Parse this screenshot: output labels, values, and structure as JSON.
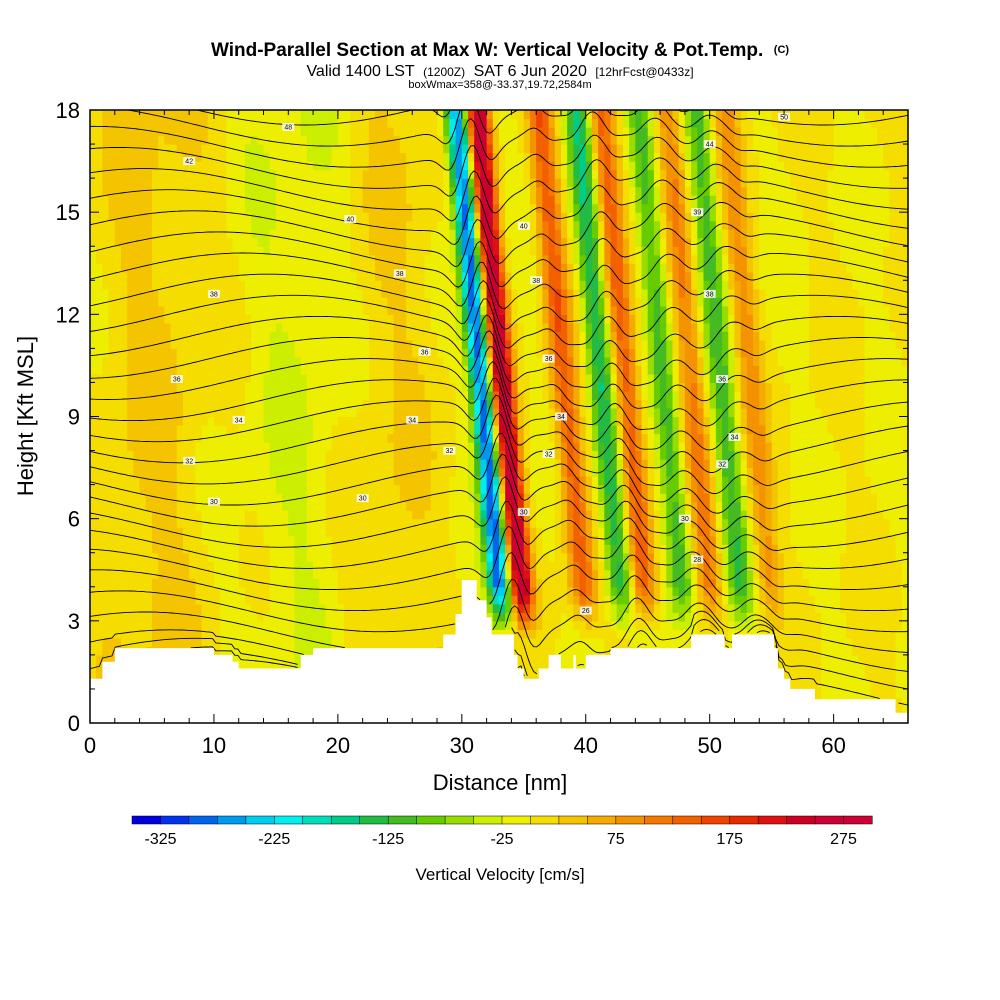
{
  "chart_data": {
    "type": "heatmap",
    "title": {
      "main": "Wind-Parallel Section at Max W: Vertical Velocity & Pot.Temp.",
      "main_suffix": "(C)",
      "line2_a": "Valid 1400 LST",
      "line2_b": "(1200Z)",
      "line2_c": "SAT 6 Jun 2020",
      "line2_d": "[12hrFcst@0433z]",
      "line3": "boxWmax=358@-33.37,19.72,2584m"
    },
    "xlabel": "Distance [nm]",
    "ylabel": "Height [Kft MSL]",
    "xlim": [
      0,
      66
    ],
    "ylim": [
      0,
      18
    ],
    "x_ticks": [
      0,
      10,
      20,
      30,
      40,
      50,
      60
    ],
    "y_ticks": [
      0,
      3,
      6,
      9,
      12,
      15,
      18
    ],
    "colorbar": {
      "title": "Vertical Velocity [cm/s]",
      "min": -350,
      "max": 300,
      "step": 25,
      "labels": [
        "-325",
        "-225",
        "-125",
        "-25",
        "75",
        "175",
        "275"
      ],
      "label_values": [
        -325,
        -225,
        -125,
        -25,
        75,
        175,
        275
      ],
      "colors": [
        "#0000dd",
        "#0033ee",
        "#0066ee",
        "#0099ee",
        "#00ccee",
        "#00eeee",
        "#00ddbb",
        "#00cc88",
        "#22bb44",
        "#44bb22",
        "#66cc00",
        "#99dd00",
        "#ccee00",
        "#eeee00",
        "#f5dd00",
        "#f5c400",
        "#f5aa00",
        "#f59200",
        "#f57800",
        "#f26000",
        "#ee4400",
        "#e82a00",
        "#dd1111",
        "#cc0022",
        "#cc0033",
        "#cc0033"
      ]
    },
    "velocity_features": [
      {
        "name": "updraft",
        "x": 33.5,
        "amplitude": 300
      },
      {
        "name": "downdraft",
        "x": 31.8,
        "amplitude": -300
      },
      {
        "name": "wave",
        "x": 38.5,
        "amplitude": 140
      },
      {
        "name": "wave",
        "x": 41.5,
        "amplitude": -150
      },
      {
        "name": "wave",
        "x": 43.5,
        "amplitude": 150
      },
      {
        "name": "wave",
        "x": 46.5,
        "amplitude": -120
      },
      {
        "name": "wave",
        "x": 48.8,
        "amplitude": 110
      },
      {
        "name": "wave",
        "x": 51.2,
        "amplitude": -110
      },
      {
        "name": "wave",
        "x": 53.6,
        "amplitude": 80
      },
      {
        "name": "background",
        "x": 5,
        "amplitude": 30
      },
      {
        "name": "background",
        "x": 17,
        "amplitude": -25
      },
      {
        "name": "background",
        "x": 24,
        "amplitude": 25
      }
    ],
    "terrain_kft": [
      [
        0,
        1.3
      ],
      [
        1,
        1.8
      ],
      [
        2,
        2.2
      ],
      [
        9.5,
        2.2
      ],
      [
        10,
        2.0
      ],
      [
        11.5,
        1.8
      ],
      [
        12,
        1.6
      ],
      [
        16.5,
        1.6
      ],
      [
        17,
        2.0
      ],
      [
        18,
        2.2
      ],
      [
        28,
        2.2
      ],
      [
        28.5,
        2.6
      ],
      [
        29.5,
        3.2
      ],
      [
        30,
        4.2
      ],
      [
        31,
        4.2
      ],
      [
        31.2,
        3.6
      ],
      [
        31.6,
        3.6
      ],
      [
        32,
        3.1
      ],
      [
        32.4,
        2.6
      ],
      [
        34,
        2.6
      ],
      [
        34.2,
        2.0
      ],
      [
        34.5,
        1.6
      ],
      [
        35,
        1.3
      ],
      [
        36,
        1.3
      ],
      [
        36.2,
        1.6
      ],
      [
        37,
        2.0
      ],
      [
        38,
        1.6
      ],
      [
        39,
        2.0
      ],
      [
        39.2,
        1.6
      ],
      [
        39.8,
        1.6
      ],
      [
        40,
        2.0
      ],
      [
        42,
        2.2
      ],
      [
        48,
        2.2
      ],
      [
        48.5,
        2.6
      ],
      [
        51,
        2.6
      ],
      [
        51.2,
        2.2
      ],
      [
        51.8,
        2.6
      ],
      [
        55,
        2.6
      ],
      [
        55.2,
        2.2
      ],
      [
        55.5,
        1.6
      ],
      [
        56,
        1.3
      ],
      [
        56.5,
        1.0
      ],
      [
        58,
        1.0
      ],
      [
        58.5,
        0.7
      ],
      [
        64.5,
        0.7
      ],
      [
        65,
        0.3
      ],
      [
        66,
        0.3
      ]
    ],
    "theta_contours": [
      {
        "value": "50",
        "label_at": [
          56,
          17.8
        ]
      },
      {
        "value": "48",
        "label_at": [
          16,
          17.5
        ]
      },
      {
        "value": "44",
        "label_at": [
          50,
          17
        ]
      },
      {
        "value": "42",
        "label_at": [
          8,
          16.5
        ]
      },
      {
        "value": "40",
        "label_at": [
          21,
          14.8
        ]
      },
      {
        "value": "40",
        "label_at": [
          35,
          14.6
        ]
      },
      {
        "value": "39",
        "label_at": [
          49,
          15
        ]
      },
      {
        "value": "38",
        "label_at": [
          25,
          13.2
        ]
      },
      {
        "value": "38",
        "label_at": [
          36,
          13
        ]
      },
      {
        "value": "38",
        "label_at": [
          10,
          12.6
        ]
      },
      {
        "value": "38",
        "label_at": [
          50,
          12.6
        ]
      },
      {
        "value": "36",
        "label_at": [
          27,
          10.9
        ]
      },
      {
        "value": "36",
        "label_at": [
          37,
          10.7
        ]
      },
      {
        "value": "36",
        "label_at": [
          7,
          10.1
        ]
      },
      {
        "value": "36",
        "label_at": [
          51,
          10.1
        ]
      },
      {
        "value": "34",
        "label_at": [
          12,
          8.9
        ]
      },
      {
        "value": "34",
        "label_at": [
          26,
          8.9
        ]
      },
      {
        "value": "34",
        "label_at": [
          38,
          9.0
        ]
      },
      {
        "value": "34",
        "label_at": [
          52,
          8.4
        ]
      },
      {
        "value": "32",
        "label_at": [
          8,
          7.7
        ]
      },
      {
        "value": "32",
        "label_at": [
          29,
          8.0
        ]
      },
      {
        "value": "32",
        "label_at": [
          37,
          7.9
        ]
      },
      {
        "value": "32",
        "label_at": [
          51,
          7.6
        ]
      },
      {
        "value": "30",
        "label_at": [
          10,
          6.5
        ]
      },
      {
        "value": "30",
        "label_at": [
          22,
          6.6
        ]
      },
      {
        "value": "30",
        "label_at": [
          35,
          6.2
        ]
      },
      {
        "value": "30",
        "label_at": [
          48,
          6.0
        ]
      },
      {
        "value": "28",
        "label_at": [
          49,
          4.8
        ]
      },
      {
        "value": "26",
        "label_at": [
          40,
          3.3
        ]
      }
    ]
  }
}
